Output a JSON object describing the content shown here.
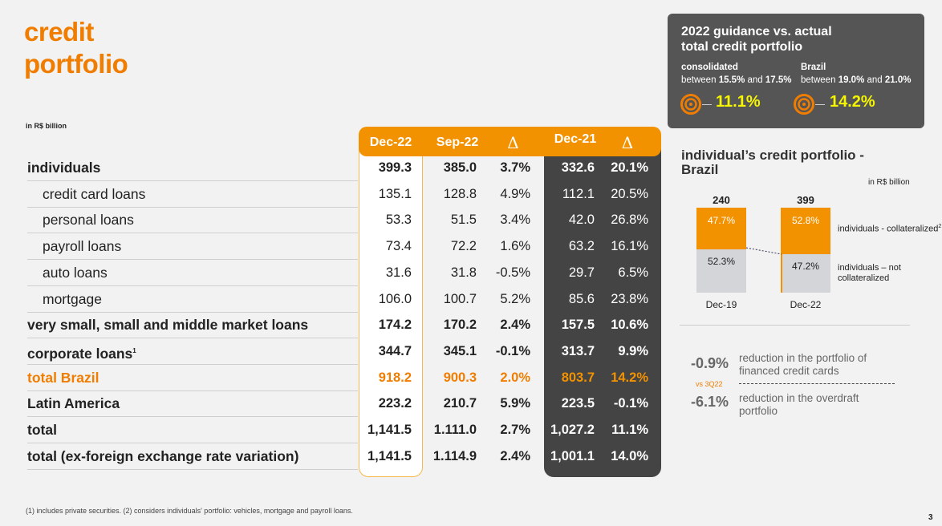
{
  "title": {
    "line1": "credit",
    "line2": "portfolio"
  },
  "unit": "in R$ billion",
  "table": {
    "headers": [
      "Dec-22",
      "Sep-22",
      "Δ",
      "Dec-21",
      "Δ"
    ],
    "rows": [
      {
        "label": "individuals",
        "values": [
          "399.3",
          "385.0",
          "3.7%",
          "332.6",
          "20.1%"
        ],
        "style": "bold"
      },
      {
        "label": "credit card loans",
        "values": [
          "135.1",
          "128.8",
          "4.9%",
          "112.1",
          "20.5%"
        ],
        "style": "sub"
      },
      {
        "label": "personal loans",
        "values": [
          "53.3",
          "51.5",
          "3.4%",
          "42.0",
          "26.8%"
        ],
        "style": "sub"
      },
      {
        "label": "payroll loans",
        "values": [
          "73.4",
          "72.2",
          "1.6%",
          "63.2",
          "16.1%"
        ],
        "style": "sub"
      },
      {
        "label": "auto loans",
        "values": [
          "31.6",
          "31.8",
          "-0.5%",
          "29.7",
          "6.5%"
        ],
        "style": "sub"
      },
      {
        "label": "mortgage",
        "values": [
          "106.0",
          "100.7",
          "5.2%",
          "85.6",
          "23.8%"
        ],
        "style": "sub"
      },
      {
        "label": "very small, small and middle market loans",
        "values": [
          "174.2",
          "170.2",
          "2.4%",
          "157.5",
          "10.6%"
        ],
        "style": "bold"
      },
      {
        "label": "corporate loans",
        "sup": "1",
        "values": [
          "344.7",
          "345.1",
          "-0.1%",
          "313.7",
          "9.9%"
        ],
        "style": "bold"
      },
      {
        "label": "total Brazil",
        "values": [
          "918.2",
          "900.3",
          "2.0%",
          "803.7",
          "14.2%"
        ],
        "style": "orange"
      },
      {
        "label": "Latin America",
        "values": [
          "223.2",
          "210.7",
          "5.9%",
          "223.5",
          "-0.1%"
        ],
        "style": "bold"
      },
      {
        "label": "total",
        "values": [
          "1,141.5",
          "1.111.0",
          "2.7%",
          "1,027.2",
          "11.1%"
        ],
        "style": "bold"
      },
      {
        "label": "total (ex-foreign exchange rate variation)",
        "values": [
          "1,141.5",
          "1.114.9",
          "2.4%",
          "1,001.1",
          "14.0%"
        ],
        "style": "bold"
      }
    ]
  },
  "guidance": {
    "title1": "2022 guidance vs. actual",
    "title2": "total credit portfolio",
    "consolidated": {
      "label": "consolidated",
      "pre": "between ",
      "low": "15.5%",
      "mid": " and ",
      "high": "17.5%",
      "actual": "11.1%"
    },
    "brazil": {
      "label": "Brazil",
      "pre": "between ",
      "low": "19.0%",
      "mid": " and ",
      "high": "21.0%",
      "actual": "14.2%"
    }
  },
  "individual_chart": {
    "title1": "individual’s  credit portfolio -",
    "title2": "Brazil",
    "unit": "in R$ billion",
    "bars": [
      {
        "category": "Dec-19",
        "total": "240",
        "collateralized": "47.7%",
        "not_collateralized": "52.3%",
        "coll_value": 47.7
      },
      {
        "category": "Dec-22",
        "total": "399",
        "collateralized": "52.8%",
        "not_collateralized": "47.2%",
        "coll_value": 52.8
      }
    ],
    "legend": {
      "collateralized": "individuals - collateralized",
      "collateralized_sup": "2",
      "not_collateralized": "individuals – not collateralized"
    }
  },
  "highlights": {
    "vs": "vs 3Q22",
    "items": [
      {
        "value": "-0.9%",
        "text": "reduction in the portfolio of financed credit cards"
      },
      {
        "value": "-6.1%",
        "text": "reduction in the overdraft portfolio"
      }
    ]
  },
  "colors": {
    "orange": "#f39200",
    "dark": "#444444",
    "gray": "#d3d5d8"
  },
  "footnote": "(1) includes private securities. (2) considers individuals' portfolio: vehicles, mortgage and payroll loans.",
  "page": "3"
}
